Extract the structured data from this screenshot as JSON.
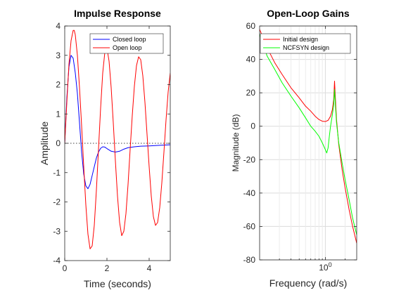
{
  "chart_data": [
    {
      "type": "line",
      "title": "Impulse Response",
      "xlabel": "Time (seconds)",
      "ylabel": "Amplitude",
      "xlim": [
        0,
        5
      ],
      "ylim": [
        -4,
        4
      ],
      "xticks": [
        0,
        2,
        4
      ],
      "yticks": [
        -4,
        -3,
        -2,
        -1,
        0,
        1,
        2,
        3,
        4
      ],
      "grid": false,
      "legend_position": "top-right",
      "reference_line": {
        "y": 0,
        "style": "dotted",
        "color": "#000000"
      },
      "series": [
        {
          "name": "Closed loop",
          "color": "#0000ff",
          "x": [
            0,
            0.1,
            0.2,
            0.3,
            0.4,
            0.5,
            0.6,
            0.7,
            0.8,
            0.9,
            1.0,
            1.1,
            1.2,
            1.3,
            1.4,
            1.5,
            1.6,
            1.7,
            1.8,
            1.9,
            2.0,
            2.2,
            2.4,
            2.6,
            2.8,
            3.0,
            3.3,
            3.6,
            4.0,
            4.5,
            5.0
          ],
          "y": [
            0.0,
            1.55,
            2.6,
            3.0,
            2.9,
            2.4,
            1.7,
            0.7,
            -0.3,
            -1.05,
            -1.45,
            -1.55,
            -1.4,
            -1.1,
            -0.8,
            -0.5,
            -0.3,
            -0.17,
            -0.12,
            -0.13,
            -0.18,
            -0.27,
            -0.3,
            -0.27,
            -0.2,
            -0.15,
            -0.12,
            -0.1,
            -0.09,
            -0.07,
            -0.05
          ]
        },
        {
          "name": "Open loop",
          "color": "#ff0000",
          "x": [
            0,
            0.1,
            0.2,
            0.3,
            0.4,
            0.45,
            0.5,
            0.6,
            0.7,
            0.8,
            0.9,
            1.0,
            1.1,
            1.2,
            1.3,
            1.4,
            1.5,
            1.6,
            1.7,
            1.8,
            1.9,
            2.0,
            2.1,
            2.2,
            2.3,
            2.4,
            2.5,
            2.6,
            2.7,
            2.8,
            2.9,
            3.0,
            3.1,
            3.2,
            3.3,
            3.4,
            3.5,
            3.6,
            3.7,
            3.8,
            3.9,
            4.0,
            4.1,
            4.2,
            4.3,
            4.4,
            4.5,
            4.6,
            4.7,
            4.8,
            4.9,
            5.0
          ],
          "y": [
            0.0,
            1.4,
            2.7,
            3.5,
            3.85,
            3.85,
            3.7,
            3.0,
            1.9,
            0.6,
            -0.8,
            -2.1,
            -3.1,
            -3.6,
            -3.5,
            -2.8,
            -1.6,
            -0.2,
            1.2,
            2.4,
            3.1,
            3.25,
            2.8,
            1.9,
            0.7,
            -0.6,
            -1.8,
            -2.7,
            -3.15,
            -3.0,
            -2.4,
            -1.4,
            -0.2,
            0.95,
            1.95,
            2.65,
            2.95,
            2.85,
            2.3,
            1.4,
            0.3,
            -0.8,
            -1.8,
            -2.5,
            -2.8,
            -2.7,
            -2.2,
            -1.35,
            -0.3,
            0.8,
            1.75,
            2.4
          ]
        }
      ]
    },
    {
      "type": "line",
      "title": "Open-Loop Gains",
      "xlabel": "Frequency (rad/s)",
      "ylabel": "Magnitude (dB)",
      "xscale": "log",
      "xlim": [
        0.1,
        3.0
      ],
      "ylim": [
        -80,
        60
      ],
      "xticks": [
        1
      ],
      "xtick_labels": [
        "10^0"
      ],
      "yticks": [
        -80,
        -60,
        -40,
        -20,
        0,
        20,
        40,
        60
      ],
      "grid": true,
      "legend_position": "top-left",
      "series": [
        {
          "name": "Initial design",
          "color": "#ff0000",
          "x": [
            0.1,
            0.13,
            0.17,
            0.22,
            0.3,
            0.4,
            0.5,
            0.6,
            0.7,
            0.8,
            0.9,
            1.0,
            1.1,
            1.2,
            1.28,
            1.34,
            1.38,
            1.42,
            1.48,
            1.6,
            1.8,
            2.0,
            2.3,
            2.6,
            3.0
          ],
          "y": [
            58,
            47,
            38,
            31,
            23,
            17,
            12,
            9,
            6,
            4,
            3,
            2.8,
            3.5,
            6,
            10,
            16,
            27,
            17,
            4,
            -11,
            -26,
            -37,
            -50,
            -60,
            -70
          ]
        },
        {
          "name": "NCFSYN design",
          "color": "#00ff00",
          "x": [
            0.1,
            0.13,
            0.17,
            0.22,
            0.3,
            0.4,
            0.5,
            0.6,
            0.7,
            0.8,
            0.9,
            1.0,
            1.05,
            1.1,
            1.15,
            1.2,
            1.28,
            1.34,
            1.38,
            1.42,
            1.48,
            1.6,
            1.8,
            2.0,
            2.3,
            2.6,
            3.0
          ],
          "y": [
            55,
            42,
            34,
            26,
            18,
            11,
            5,
            0,
            -3,
            -6,
            -10,
            -14,
            -16,
            -13,
            -6,
            0,
            7,
            13,
            22,
            13,
            2,
            -10,
            -22,
            -32,
            -44,
            -55,
            -65
          ]
        }
      ]
    }
  ]
}
